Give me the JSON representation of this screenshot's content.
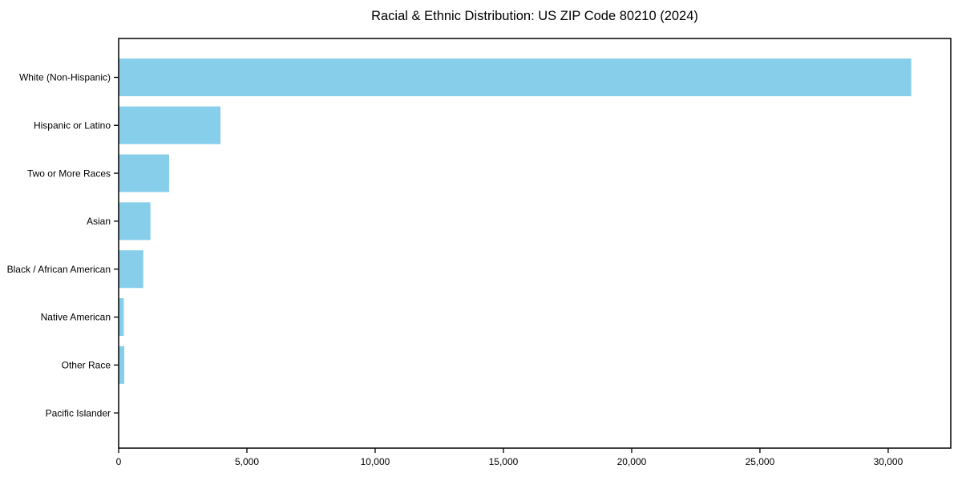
{
  "chart_data": {
    "type": "bar",
    "orientation": "horizontal",
    "title": "Racial & Ethnic Distribution: US ZIP Code 80210 (2024)",
    "xlabel": "",
    "ylabel": "",
    "categories": [
      "White (Non-Hispanic)",
      "Hispanic or Latino",
      "Two or More Races",
      "Asian",
      "Black / African American",
      "Native American",
      "Other Race",
      "Pacific Islander"
    ],
    "values": [
      30900,
      3970,
      1970,
      1240,
      960,
      200,
      220,
      10
    ],
    "xlim": [
      0,
      32440
    ],
    "xticks": {
      "values": [
        0,
        5000,
        10000,
        15000,
        20000,
        25000,
        30000
      ],
      "labels": [
        "0",
        "5,000",
        "10,000",
        "15,000",
        "20,000",
        "25,000",
        "30,000"
      ]
    },
    "grid": false,
    "legend": null,
    "bar_color": "#87CEEB",
    "axis_color": "#000000",
    "text_color": "#000000",
    "background_color": "#ffffff"
  }
}
